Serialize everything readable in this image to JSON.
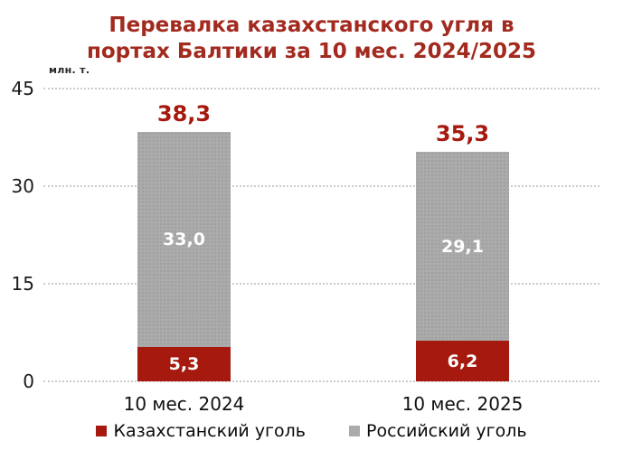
{
  "chart_data": {
    "type": "bar",
    "stacked": true,
    "title": "Перевалка казахстанского угля в портах Балтики за 10 мес. 2024/2025",
    "title_lines": [
      "Перевалка казахстанского угля в",
      "портах Балтики за 10 мес. 2024/2025"
    ],
    "unit_label": "млн. т.",
    "categories": [
      "10 мес. 2024",
      "10 мес. 2025"
    ],
    "series": [
      {
        "name": "Казахстанский уголь",
        "color": "#A6190F",
        "values": [
          5.3,
          6.2
        ]
      },
      {
        "name": "Российский уголь",
        "color": "#ABABAB",
        "values": [
          33.0,
          29.1
        ]
      }
    ],
    "segment_labels_display": [
      [
        "5,3",
        "6,2"
      ],
      [
        "33,0",
        "29,1"
      ]
    ],
    "totals": [
      38.3,
      35.3
    ],
    "total_labels_display": [
      "38,3",
      "35,3"
    ],
    "y_ticks": [
      0,
      15,
      30,
      45
    ],
    "y_tick_labels": [
      "0",
      "15",
      "30",
      "45"
    ],
    "ylim": [
      0,
      45
    ],
    "grid": true,
    "grid_style": "dotted",
    "legend_position": "bottom"
  },
  "colors": {
    "title_red": "#A22A1F",
    "bar_red": "#A6190F",
    "bar_gray": "#ABABAB",
    "gridline": "#CBCBCB",
    "text": "#1A1A1A",
    "background": "#FFFFFF"
  }
}
